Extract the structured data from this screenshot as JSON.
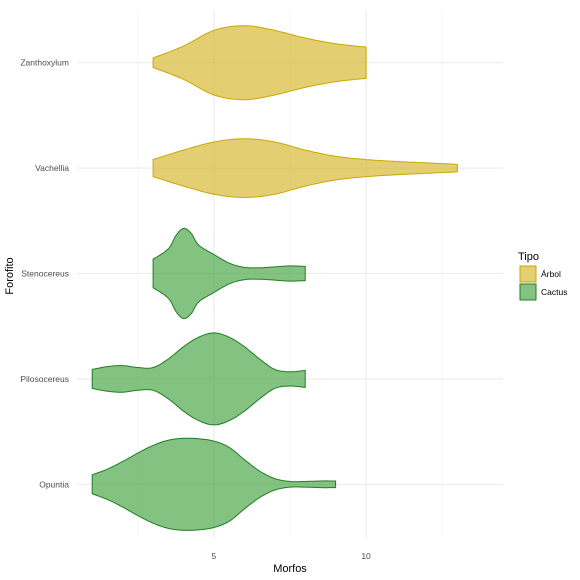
{
  "chart_data": {
    "type": "violin",
    "orientation": "horizontal",
    "xlabel": "Morfos",
    "ylabel": "Forofito",
    "xlim": [
      0.5,
      14.5
    ],
    "x_ticks": [
      5,
      10
    ],
    "x_minor_ticks": [
      2.5,
      7.5,
      12.5
    ],
    "grid": true,
    "categories": [
      "Opuntia",
      "Pilosocereus",
      "Stenocereus",
      "Vachellia",
      "Zanthoxylum"
    ],
    "legend": {
      "title": "Tipo",
      "position": "right",
      "entries": [
        {
          "label": "Árbol",
          "fill": "#d9b936",
          "stroke": "#c9a800"
        },
        {
          "label": "Cactus",
          "fill": "#4ea84a",
          "stroke": "#1f7d22"
        }
      ]
    },
    "series": [
      {
        "category": "Opuntia",
        "tipo": "Cactus",
        "profile": [
          [
            1,
            0.2
          ],
          [
            1.5,
            0.32
          ],
          [
            2,
            0.48
          ],
          [
            2.5,
            0.66
          ],
          [
            3,
            0.82
          ],
          [
            3.5,
            0.93
          ],
          [
            4,
            0.97
          ],
          [
            4.5,
            0.96
          ],
          [
            5,
            0.91
          ],
          [
            5.5,
            0.78
          ],
          [
            6,
            0.52
          ],
          [
            6.5,
            0.28
          ],
          [
            7,
            0.12
          ],
          [
            7.5,
            0.06
          ],
          [
            8,
            0.06
          ],
          [
            8.5,
            0.07
          ],
          [
            9,
            0.07
          ]
        ]
      },
      {
        "category": "Pilosocereus",
        "tipo": "Cactus",
        "profile": [
          [
            1,
            0.2
          ],
          [
            1.5,
            0.26
          ],
          [
            2,
            0.28
          ],
          [
            2.5,
            0.24
          ],
          [
            3,
            0.24
          ],
          [
            3.5,
            0.42
          ],
          [
            4,
            0.68
          ],
          [
            4.5,
            0.88
          ],
          [
            5,
            0.97
          ],
          [
            5.5,
            0.88
          ],
          [
            6,
            0.68
          ],
          [
            6.5,
            0.42
          ],
          [
            7,
            0.2
          ],
          [
            7.5,
            0.15
          ],
          [
            8,
            0.18
          ]
        ]
      },
      {
        "category": "Stenocereus",
        "tipo": "Cactus",
        "profile": [
          [
            3,
            0.3
          ],
          [
            3.5,
            0.52
          ],
          [
            3.75,
            0.8
          ],
          [
            4,
            0.95
          ],
          [
            4.25,
            0.85
          ],
          [
            4.5,
            0.6
          ],
          [
            5,
            0.4
          ],
          [
            5.5,
            0.22
          ],
          [
            6,
            0.13
          ],
          [
            6.5,
            0.12
          ],
          [
            7,
            0.14
          ],
          [
            7.5,
            0.16
          ],
          [
            8,
            0.15
          ]
        ]
      },
      {
        "category": "Vachellia",
        "tipo": "Árbol",
        "profile": [
          [
            3,
            0.18
          ],
          [
            4,
            0.38
          ],
          [
            5,
            0.55
          ],
          [
            6,
            0.62
          ],
          [
            7,
            0.55
          ],
          [
            8,
            0.38
          ],
          [
            9,
            0.25
          ],
          [
            10,
            0.18
          ],
          [
            11,
            0.14
          ],
          [
            12,
            0.11
          ],
          [
            13,
            0.08
          ]
        ]
      },
      {
        "category": "Zanthoxylum",
        "tipo": "Árbol",
        "profile": [
          [
            3,
            0.1
          ],
          [
            4,
            0.35
          ],
          [
            5,
            0.68
          ],
          [
            6,
            0.78
          ],
          [
            7,
            0.68
          ],
          [
            8,
            0.52
          ],
          [
            9,
            0.4
          ],
          [
            10,
            0.33
          ]
        ]
      }
    ]
  }
}
